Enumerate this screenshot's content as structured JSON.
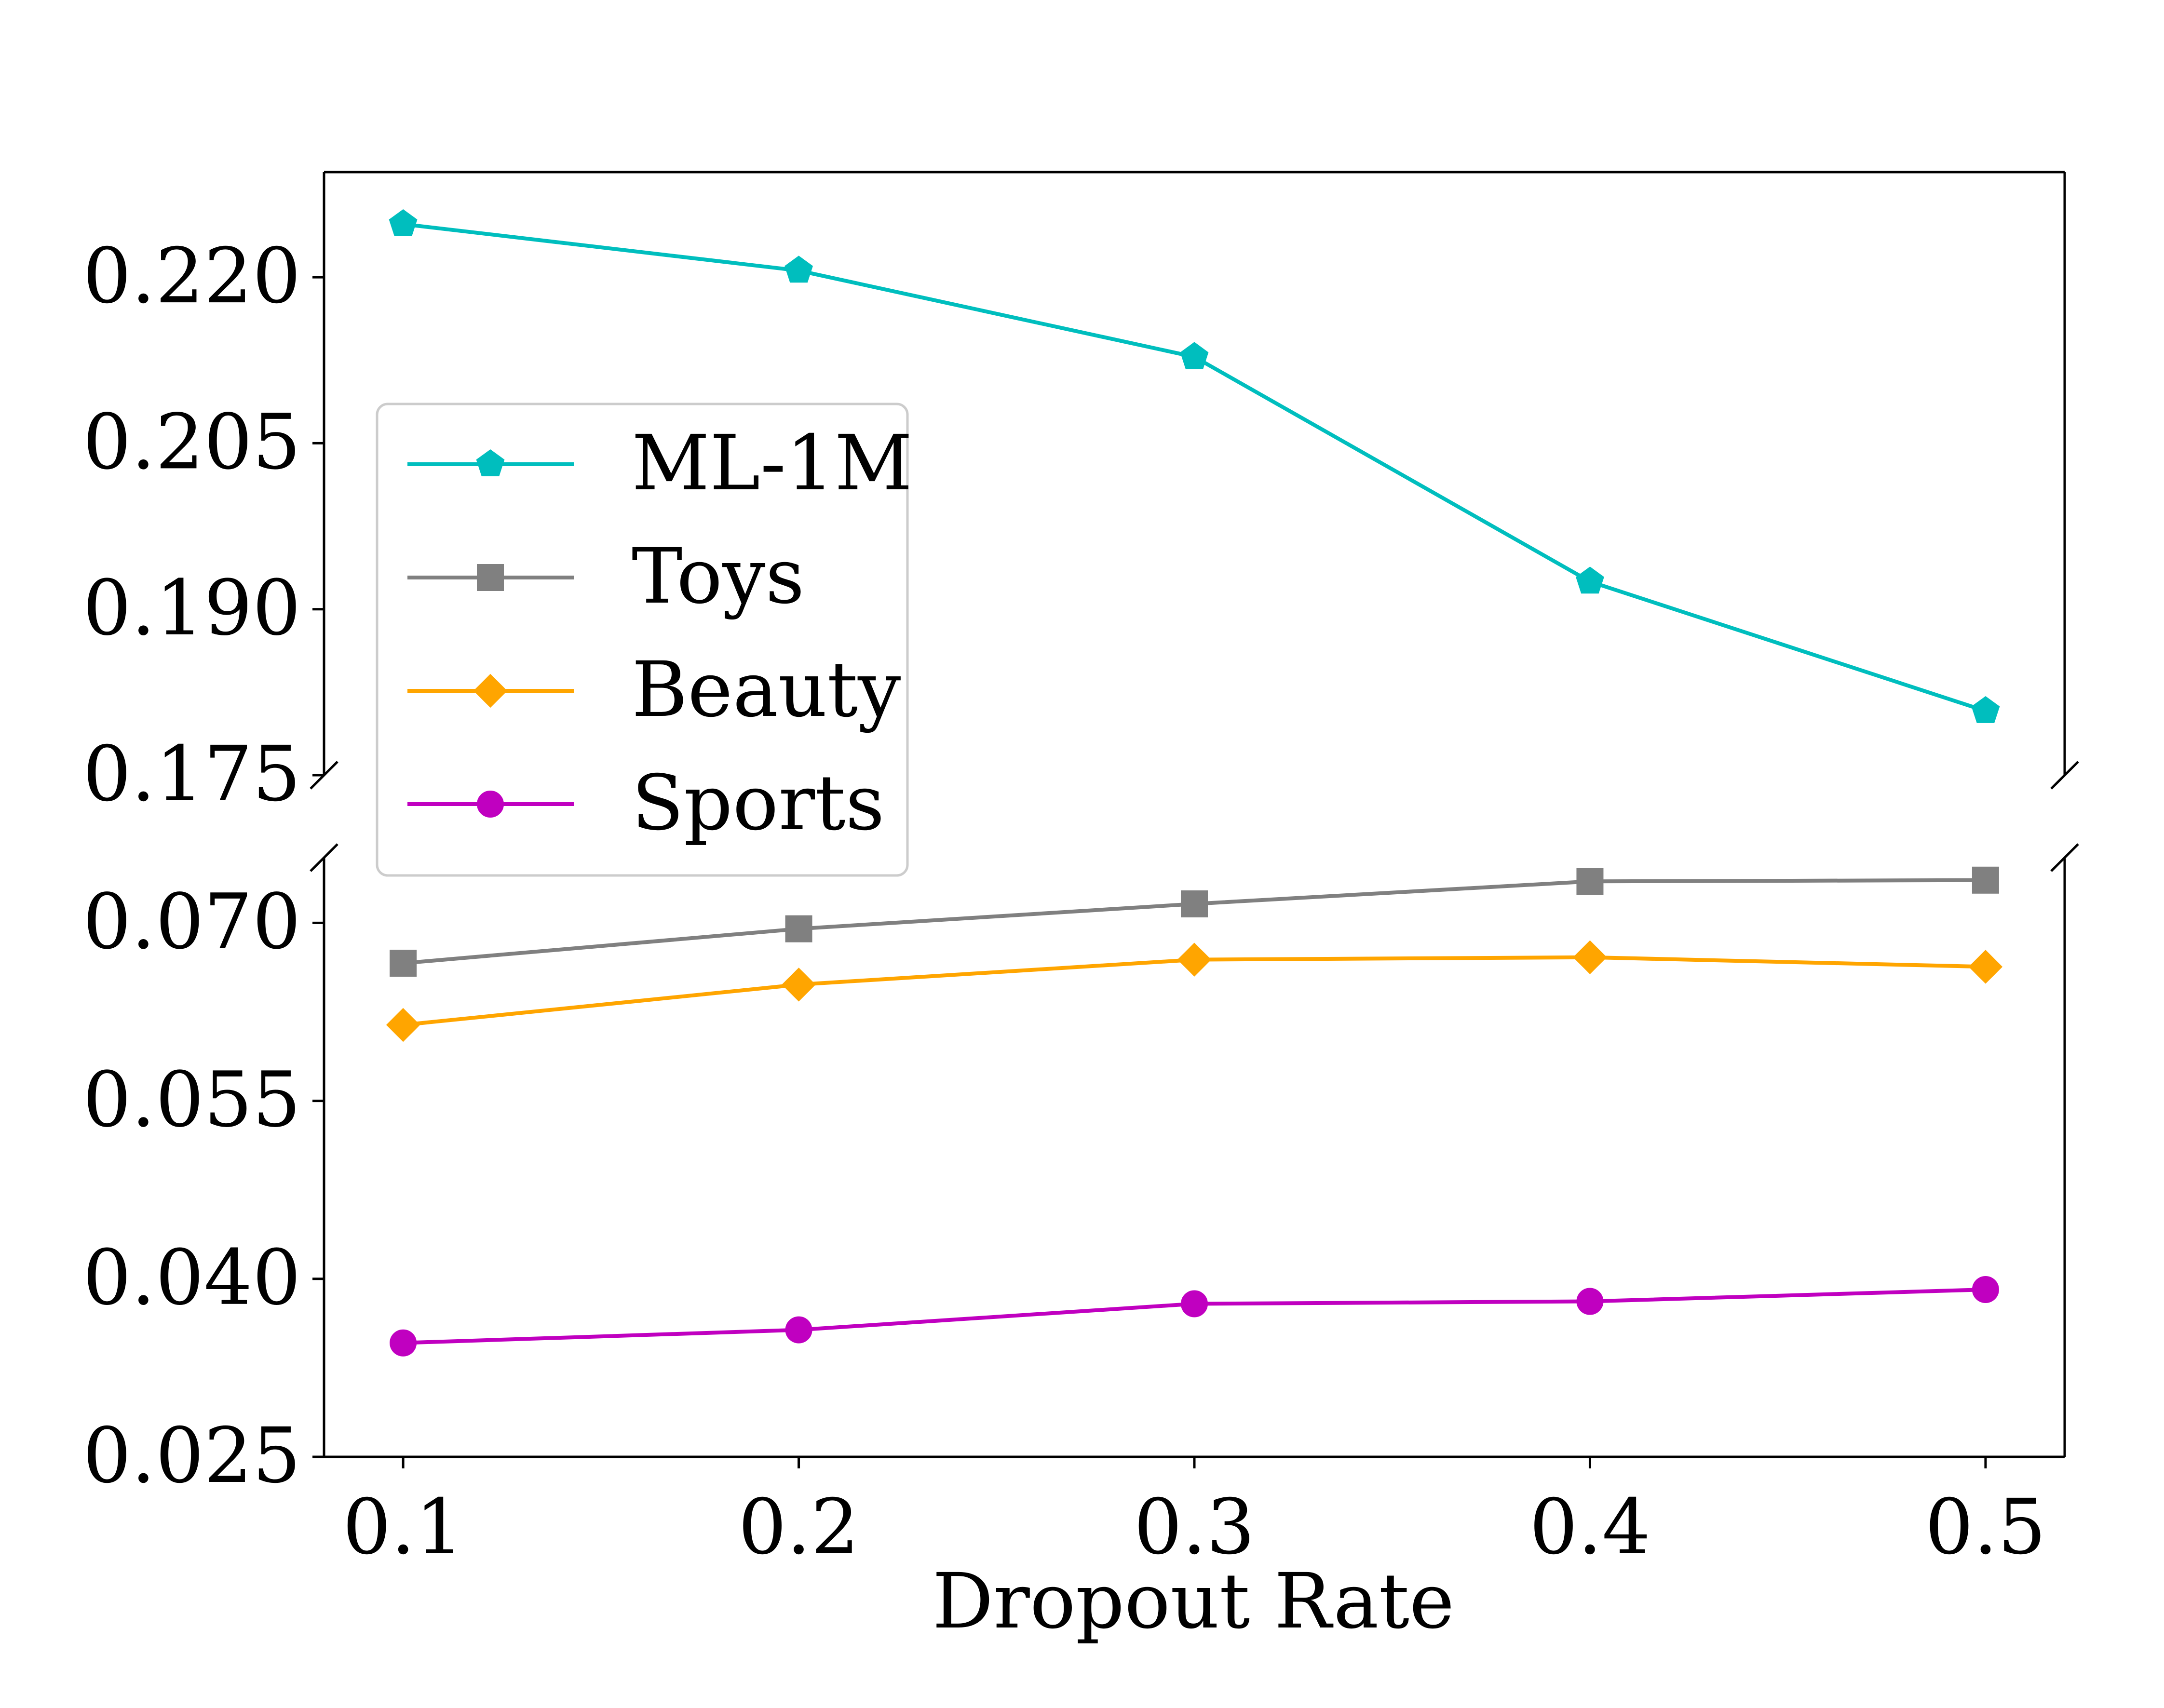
{
  "chart_data": {
    "type": "line",
    "title": "",
    "xlabel": "Dropout Rate",
    "ylabel": "",
    "x": [
      0.1,
      0.2,
      0.3,
      0.4,
      0.5
    ],
    "x_tick_labels": [
      "0.1",
      "0.2",
      "0.3",
      "0.4",
      "0.5"
    ],
    "xlim": [
      0.08,
      0.52
    ],
    "broken_y_axis": true,
    "panels": [
      {
        "position": "top",
        "ylim": [
          0.175,
          0.2295
        ],
        "y_ticks": [
          0.175,
          0.19,
          0.205,
          0.22
        ],
        "y_tick_labels": [
          "0.175",
          "0.190",
          "0.205",
          "0.220"
        ]
      },
      {
        "position": "bottom",
        "ylim": [
          0.025,
          0.0755
        ],
        "y_ticks": [
          0.025,
          0.04,
          0.055,
          0.07
        ],
        "y_tick_labels": [
          "0.025",
          "0.040",
          "0.055",
          "0.070"
        ]
      }
    ],
    "series": [
      {
        "name": "ML-1M",
        "panel": "top",
        "color": "#00bebe",
        "marker": "pentagon",
        "values": [
          0.2248,
          0.2206,
          0.2128,
          0.1925,
          0.1808
        ]
      },
      {
        "name": "Toys",
        "panel": "bottom",
        "color": "#808080",
        "marker": "square",
        "values": [
          0.0666,
          0.0695,
          0.0716,
          0.0735,
          0.0736
        ]
      },
      {
        "name": "Beauty",
        "panel": "bottom",
        "color": "#ffa500",
        "marker": "diamond",
        "values": [
          0.0614,
          0.0648,
          0.0669,
          0.0671,
          0.0663
        ]
      },
      {
        "name": "Sports",
        "panel": "bottom",
        "color": "#c000c0",
        "marker": "circle",
        "values": [
          0.0346,
          0.0357,
          0.0379,
          0.0381,
          0.0391
        ]
      }
    ],
    "legend": {
      "placement": "middle-left"
    },
    "grid": false
  }
}
